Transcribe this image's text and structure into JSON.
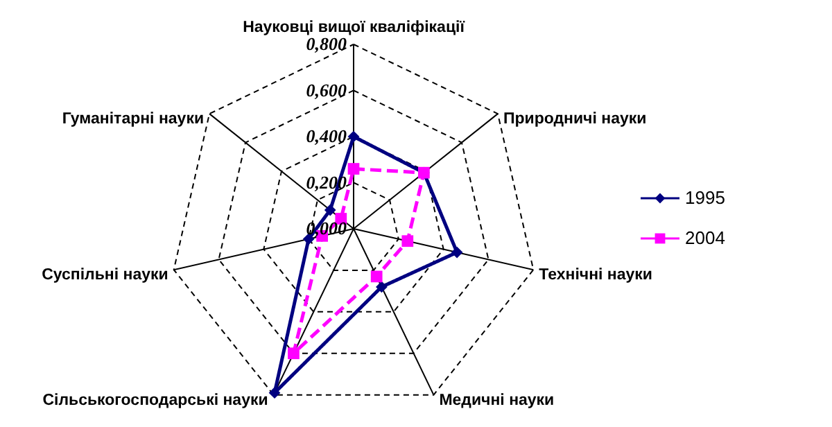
{
  "chart_data": {
    "type": "radar",
    "categories": [
      "Науковці вищої кваліфікації",
      "Природничі науки",
      "Технічні науки",
      "Медичні науки",
      "Сільськогосподарські науки",
      "Суспільні науки",
      "Гуманітарні науки"
    ],
    "series": [
      {
        "name": "1995",
        "color": "#000080",
        "marker": "diamond",
        "line_style": "solid",
        "values": [
          0.4,
          0.39,
          0.46,
          0.28,
          0.79,
          0.2,
          0.13
        ]
      },
      {
        "name": "2004",
        "color": "#ff00ff",
        "marker": "square",
        "line_style": "dashed",
        "values": [
          0.26,
          0.39,
          0.24,
          0.23,
          0.6,
          0.14,
          0.07
        ]
      }
    ],
    "ylim": [
      0,
      0.8
    ],
    "yticks": [
      {
        "value": 0,
        "label": "0,000"
      },
      {
        "value": 0.2,
        "label": "0,200"
      },
      {
        "value": 0.4,
        "label": "0,400"
      },
      {
        "value": 0.6,
        "label": "0,600"
      },
      {
        "value": 0.8,
        "label": "0,800"
      }
    ],
    "grid": true,
    "legend": "right"
  }
}
